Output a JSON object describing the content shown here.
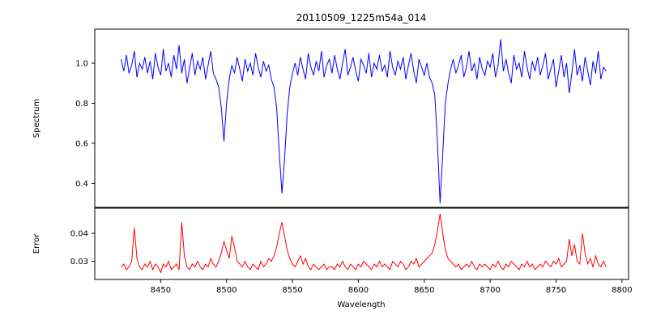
{
  "title": "20110509_1225m54a_014",
  "xlabel": "Wavelength",
  "xticks": [
    8450,
    8500,
    8550,
    8600,
    8650,
    8700,
    8750,
    8800
  ],
  "xtick_labels": [
    "8450",
    "8500",
    "8550",
    "8600",
    "8650",
    "8700",
    "8750",
    "8800"
  ],
  "chart_data": [
    {
      "type": "line",
      "name": "spectrum",
      "ylabel": "Spectrum",
      "color": "#0000ff",
      "x_start": 8420,
      "x_step": 2,
      "xlim": [
        8400,
        8805
      ],
      "ylim": [
        0.28,
        1.17
      ],
      "yticks": [
        0.4,
        0.6,
        0.8,
        1.0
      ],
      "ytick_labels": [
        "0.4",
        "0.6",
        "0.8",
        "1.0"
      ],
      "absorption_lines": [
        {
          "center": 8498,
          "min_value": 0.61
        },
        {
          "center": 8542,
          "min_value": 0.35
        },
        {
          "center": 8662,
          "min_value": 0.3
        }
      ],
      "values": [
        1.02,
        0.96,
        1.04,
        0.95,
        0.99,
        1.06,
        0.93,
        1.0,
        0.97,
        1.03,
        0.95,
        1.01,
        0.92,
        1.05,
        0.98,
        0.94,
        1.07,
        0.96,
        1.0,
        0.93,
        1.04,
        0.97,
        1.09,
        0.95,
        1.02,
        0.9,
        0.98,
        1.05,
        0.94,
        1.01,
        0.97,
        1.03,
        0.92,
        0.99,
        1.06,
        0.95,
        0.92,
        0.88,
        0.78,
        0.61,
        0.8,
        0.92,
        0.99,
        0.95,
        1.03,
        0.97,
        0.91,
        1.02,
        0.96,
        1.0,
        0.94,
        1.05,
        0.98,
        0.93,
        1.01,
        0.96,
        0.99,
        0.92,
        0.88,
        0.78,
        0.55,
        0.35,
        0.52,
        0.75,
        0.88,
        0.95,
        1.0,
        0.94,
        1.03,
        0.97,
        0.92,
        1.05,
        0.98,
        0.94,
        1.01,
        0.96,
        1.06,
        0.93,
        0.99,
        1.02,
        0.95,
        1.04,
        0.97,
        0.92,
        1.0,
        1.07,
        0.94,
        0.98,
        1.03,
        0.96,
        0.91,
        1.02,
        0.99,
        0.95,
        1.05,
        0.93,
        1.0,
        0.97,
        1.04,
        0.96,
        0.99,
        0.93,
        1.06,
        0.98,
        0.94,
        1.01,
        0.97,
        1.03,
        0.92,
        0.99,
        1.05,
        0.96,
        0.9,
        1.02,
        0.98,
        0.94,
        1.0,
        0.93,
        0.9,
        0.84,
        0.6,
        0.3,
        0.55,
        0.8,
        0.9,
        0.97,
        1.02,
        0.95,
        0.99,
        1.04,
        0.93,
        0.98,
        1.06,
        0.96,
        1.0,
        0.92,
        1.03,
        0.97,
        0.94,
        1.01,
        0.98,
        1.05,
        0.93,
        0.99,
        1.12,
        0.96,
        1.02,
        0.95,
        0.9,
        1.04,
        0.97,
        1.0,
        0.93,
        1.06,
        0.98,
        0.92,
        1.01,
        0.96,
        1.03,
        0.94,
        0.99,
        1.05,
        0.92,
        0.97,
        1.02,
        0.88,
        0.96,
        1.04,
        0.93,
        1.0,
        0.85,
        0.95,
        1.07,
        0.94,
        0.99,
        0.91,
        1.03,
        0.96,
        0.89,
        1.01,
        0.95,
        1.06,
        0.92,
        0.98,
        0.96
      ]
    },
    {
      "type": "line",
      "name": "error",
      "ylabel": "Error",
      "color": "#ff0000",
      "x_start": 8420,
      "x_step": 2,
      "xlim": [
        8400,
        8805
      ],
      "ylim": [
        0.0235,
        0.049
      ],
      "yticks": [
        0.03,
        0.04
      ],
      "ytick_labels": [
        "0.03",
        "0.04"
      ],
      "values": [
        0.028,
        0.029,
        0.027,
        0.028,
        0.03,
        0.042,
        0.031,
        0.028,
        0.027,
        0.029,
        0.028,
        0.03,
        0.027,
        0.029,
        0.028,
        0.026,
        0.029,
        0.028,
        0.03,
        0.027,
        0.028,
        0.029,
        0.027,
        0.044,
        0.032,
        0.028,
        0.027,
        0.029,
        0.028,
        0.03,
        0.028,
        0.027,
        0.029,
        0.028,
        0.031,
        0.029,
        0.028,
        0.03,
        0.033,
        0.037,
        0.034,
        0.031,
        0.039,
        0.035,
        0.03,
        0.029,
        0.028,
        0.03,
        0.028,
        0.027,
        0.029,
        0.028,
        0.027,
        0.03,
        0.028,
        0.029,
        0.031,
        0.03,
        0.032,
        0.035,
        0.04,
        0.044,
        0.039,
        0.034,
        0.031,
        0.029,
        0.028,
        0.03,
        0.032,
        0.029,
        0.031,
        0.028,
        0.027,
        0.029,
        0.028,
        0.027,
        0.028,
        0.029,
        0.027,
        0.028,
        0.028,
        0.027,
        0.029,
        0.028,
        0.03,
        0.028,
        0.027,
        0.029,
        0.028,
        0.027,
        0.029,
        0.028,
        0.03,
        0.029,
        0.028,
        0.027,
        0.029,
        0.028,
        0.03,
        0.028,
        0.029,
        0.028,
        0.027,
        0.03,
        0.029,
        0.028,
        0.03,
        0.029,
        0.027,
        0.028,
        0.03,
        0.029,
        0.031,
        0.028,
        0.029,
        0.03,
        0.031,
        0.032,
        0.033,
        0.036,
        0.041,
        0.047,
        0.04,
        0.034,
        0.031,
        0.03,
        0.029,
        0.028,
        0.029,
        0.027,
        0.028,
        0.029,
        0.028,
        0.03,
        0.028,
        0.027,
        0.029,
        0.028,
        0.029,
        0.028,
        0.027,
        0.029,
        0.028,
        0.03,
        0.028,
        0.027,
        0.029,
        0.028,
        0.03,
        0.029,
        0.028,
        0.027,
        0.029,
        0.028,
        0.03,
        0.028,
        0.029,
        0.027,
        0.028,
        0.029,
        0.028,
        0.03,
        0.029,
        0.028,
        0.03,
        0.029,
        0.031,
        0.028,
        0.029,
        0.03,
        0.038,
        0.032,
        0.036,
        0.03,
        0.029,
        0.04,
        0.033,
        0.029,
        0.031,
        0.028,
        0.032,
        0.029,
        0.028,
        0.03,
        0.028
      ]
    }
  ]
}
